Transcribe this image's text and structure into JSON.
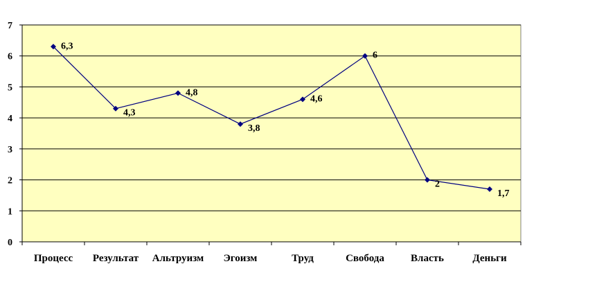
{
  "chart_data": {
    "type": "line",
    "title": "",
    "xlabel": "",
    "ylabel": "",
    "categories": [
      "Процесс",
      "Результат",
      "Альтруизм",
      "Эгоизм",
      "Труд",
      "Свобода",
      "Власть",
      "Деньги"
    ],
    "series": [
      {
        "values": [
          6.3,
          4.3,
          4.8,
          3.8,
          4.6,
          6,
          2,
          1.7
        ],
        "data_labels": [
          "6,3",
          "4,3",
          "4,8",
          "3,8",
          "4,6",
          "6",
          "2",
          "1,7"
        ],
        "color": "#000080",
        "marker": "diamond"
      }
    ],
    "ylim": [
      0,
      7
    ],
    "yticks": [
      "0",
      "1",
      "2",
      "3",
      "4",
      "5",
      "6",
      "7"
    ],
    "grid": true,
    "legend": "none",
    "plot_background": "#FFFFC0"
  }
}
